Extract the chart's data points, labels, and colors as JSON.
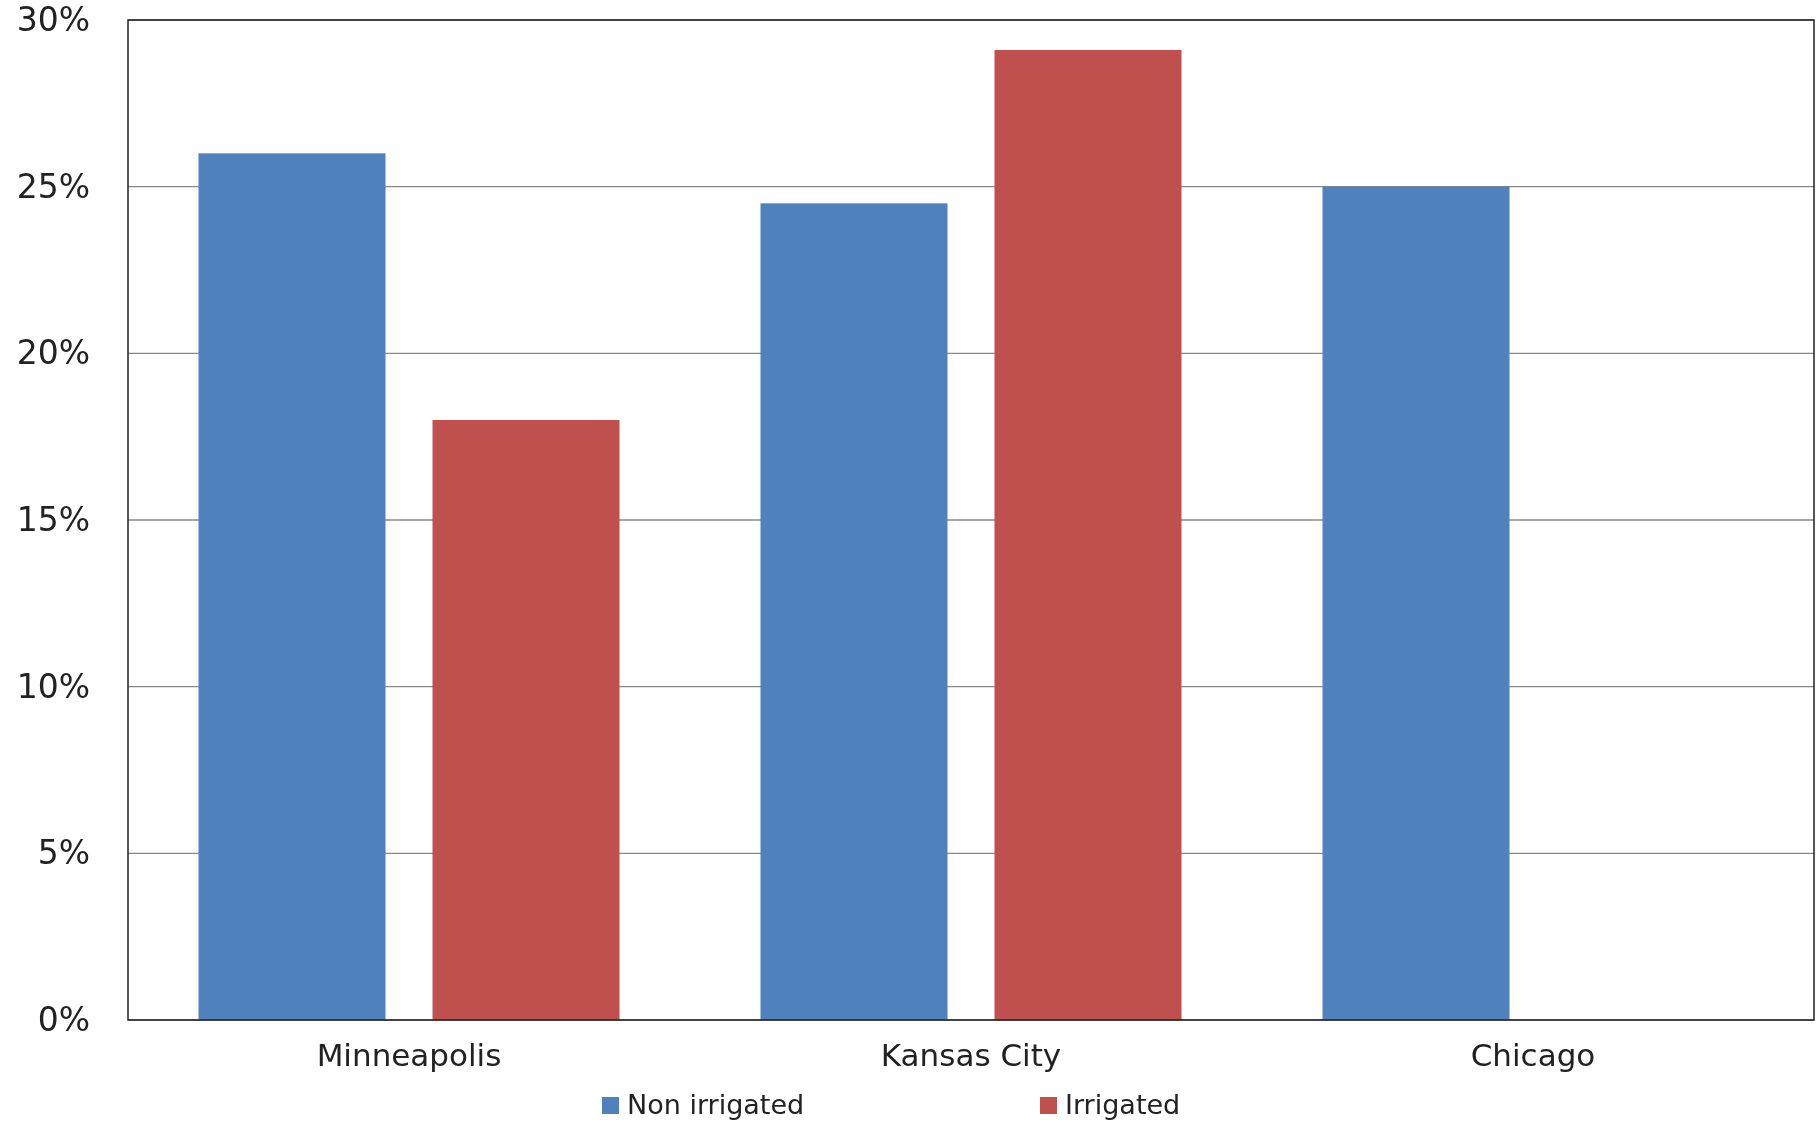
{
  "chart_data": {
    "type": "bar",
    "categories": [
      "Minneapolis",
      "Kansas City",
      "Chicago"
    ],
    "series": [
      {
        "name": "Non irrigated",
        "color": "#4f81bd",
        "values": [
          26,
          24.5,
          25
        ]
      },
      {
        "name": "Irrigated",
        "color": "#c0504d",
        "values": [
          18,
          29.1,
          null
        ]
      }
    ],
    "ylim": [
      0,
      30
    ],
    "yticks": [
      {
        "value": 0,
        "label": "0%"
      },
      {
        "value": 5,
        "label": "5%"
      },
      {
        "value": 10,
        "label": "10%"
      },
      {
        "value": 15,
        "label": "15%"
      },
      {
        "value": 20,
        "label": "20%"
      },
      {
        "value": 25,
        "label": "25%"
      },
      {
        "value": 30,
        "label": "30%"
      }
    ],
    "grid": "y",
    "legend": "bottom"
  }
}
